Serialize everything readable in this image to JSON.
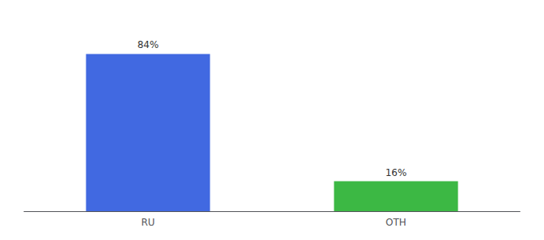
{
  "chart_data": {
    "type": "bar",
    "categories": [
      "RU",
      "OTH"
    ],
    "values": [
      84,
      16
    ],
    "colors": [
      "#4169e1",
      "#3cb844"
    ],
    "value_labels": [
      "84%",
      "16%"
    ],
    "data_labels": true,
    "ylim": [
      0,
      100
    ],
    "tick_labels": "x",
    "grid": false
  }
}
